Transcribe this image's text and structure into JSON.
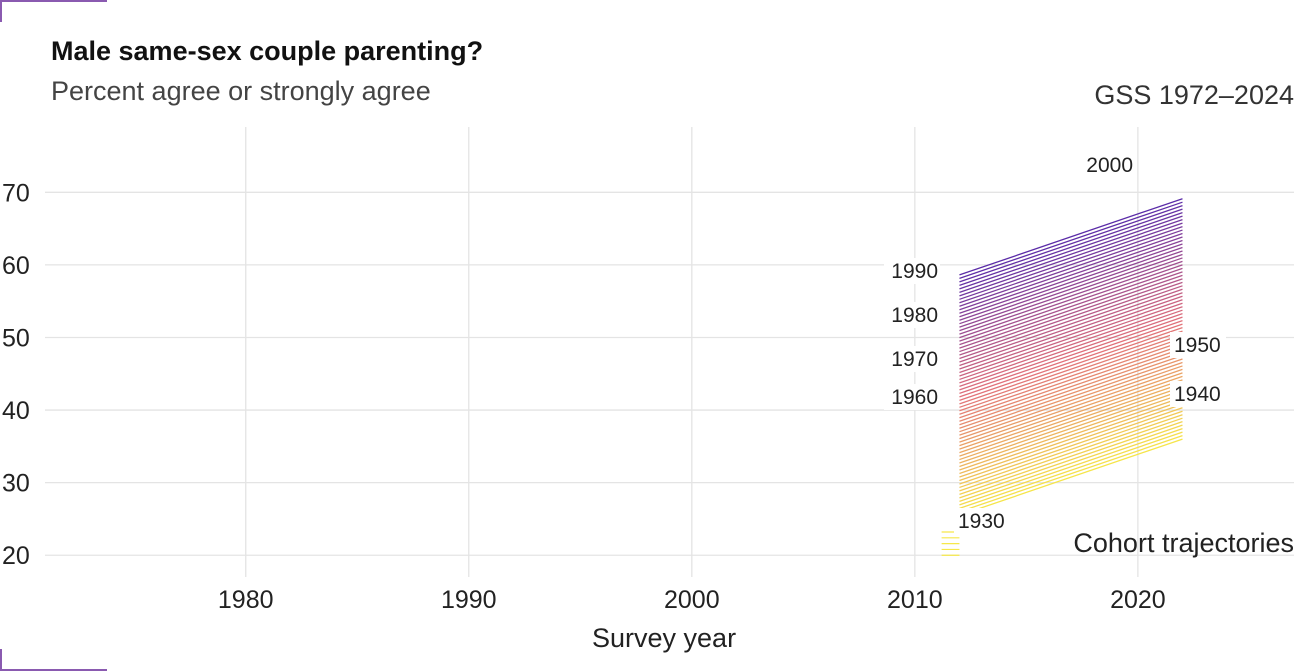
{
  "header": {
    "title": "Male same-sex couple parenting?",
    "subtitle": "Percent agree or strongly agree",
    "source": "GSS 1972–2024"
  },
  "annotation": "Cohort trajectories",
  "colors": {
    "low": "#f6e84a",
    "mid": "#e1707a",
    "high": "#5b2ca8",
    "grid": "#e4e4e4"
  },
  "chart_data": {
    "type": "line",
    "title": "Male same-sex couple parenting?",
    "subtitle": "Percent agree or strongly agree",
    "xlabel": "Survey year",
    "ylabel": "",
    "xlim": [
      1971,
      2027
    ],
    "ylim": [
      17,
      79
    ],
    "x_ticks": [
      1980,
      1990,
      2000,
      2010,
      2020
    ],
    "y_ticks": [
      20,
      30,
      40,
      50,
      60,
      70
    ],
    "grid": true,
    "legend": "none",
    "survey_years": [
      2012,
      2022
    ],
    "cohort_range": [
      1930,
      2000
    ],
    "cohort_line_model": "start value 25.5 + 0.48 per cohort year after 1931 (2012); end value 36 + 0.48 per cohort year after 1931 (2022); 1930 cohort short flat segment 2011.2-2012 near 20-24",
    "cohort_labels": [
      {
        "label": "1930",
        "cohort": 1930
      },
      {
        "label": "1940",
        "cohort": 1940
      },
      {
        "label": "1950",
        "cohort": 1950
      },
      {
        "label": "1960",
        "cohort": 1960
      },
      {
        "label": "1970",
        "cohort": 1970
      },
      {
        "label": "1980",
        "cohort": 1980
      },
      {
        "label": "1990",
        "cohort": 1990
      },
      {
        "label": "2000",
        "cohort": 2000
      }
    ]
  }
}
